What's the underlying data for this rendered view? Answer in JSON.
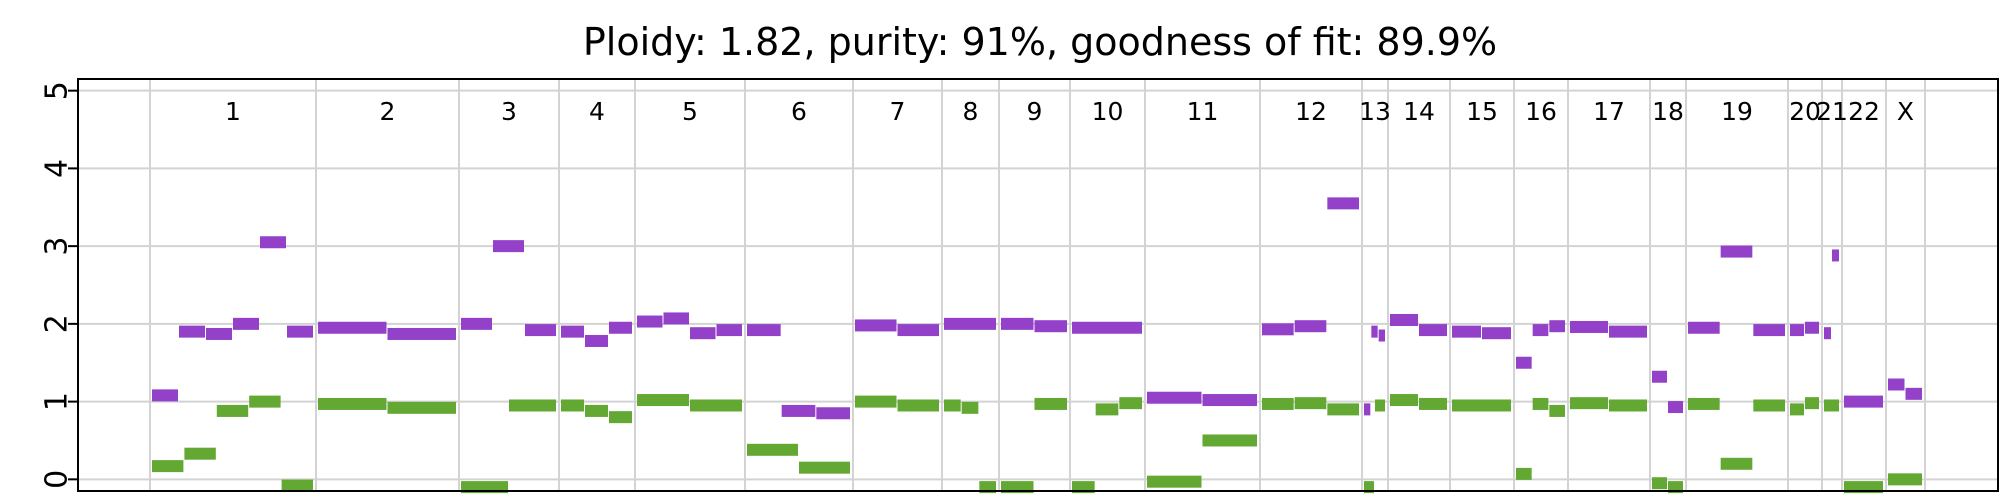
{
  "chart_data": {
    "type": "scatter",
    "title": "Ploidy: 1.82, purity: 91%, goodness of fit: 89.9%",
    "xlabel": "",
    "ylabel": "",
    "ylim": [
      -0.15,
      5.15
    ],
    "y_ticks": [
      "0",
      "1",
      "2",
      "3",
      "4",
      "5"
    ],
    "grid": true,
    "legend": "none",
    "colors": {
      "major_cn": "#9341c9",
      "minor_cn": "#62a832",
      "grid": "#d3d3d3"
    },
    "chromosomes": [
      "1",
      "2",
      "3",
      "4",
      "5",
      "6",
      "7",
      "8",
      "9",
      "10",
      "11",
      "12",
      "13",
      "14",
      "15",
      "16",
      "17",
      "18",
      "19",
      "20",
      "21",
      "22",
      "X"
    ],
    "series": [
      {
        "key": "major",
        "segments": [
          [
            1,
            1.08
          ],
          [
            1,
            1.9
          ],
          [
            1,
            1.87
          ],
          [
            1,
            2.0
          ],
          [
            1,
            3.05
          ],
          [
            1,
            1.9
          ],
          [
            2,
            1.95
          ],
          [
            2,
            1.87
          ],
          [
            3,
            2.0
          ],
          [
            3,
            3.0
          ],
          [
            3,
            1.92
          ],
          [
            4,
            1.9
          ],
          [
            4,
            1.78
          ],
          [
            4,
            1.95
          ],
          [
            5,
            2.03
          ],
          [
            5,
            2.07
          ],
          [
            5,
            1.88
          ],
          [
            5,
            1.92
          ],
          [
            6,
            1.92
          ],
          [
            6,
            0.88
          ],
          [
            6,
            0.85
          ],
          [
            7,
            1.98
          ],
          [
            7,
            1.92
          ],
          [
            8,
            2.0
          ],
          [
            9,
            2.0
          ],
          [
            9,
            1.97
          ],
          [
            10,
            1.95
          ],
          [
            11,
            1.05
          ],
          [
            11,
            1.02
          ],
          [
            12,
            1.93
          ],
          [
            12,
            1.97
          ],
          [
            12,
            3.55
          ],
          [
            13,
            0.9
          ],
          [
            13,
            1.9
          ],
          [
            13,
            1.85
          ],
          [
            14,
            2.05
          ],
          [
            14,
            1.92
          ],
          [
            15,
            1.9
          ],
          [
            15,
            1.88
          ],
          [
            16,
            1.5
          ],
          [
            16,
            1.92
          ],
          [
            16,
            1.97
          ],
          [
            17,
            1.96
          ],
          [
            17,
            1.9
          ],
          [
            18,
            1.32
          ],
          [
            18,
            0.93
          ],
          [
            19,
            1.95
          ],
          [
            19,
            2.93
          ],
          [
            19,
            1.92
          ],
          [
            20,
            1.92
          ],
          [
            20,
            1.95
          ],
          [
            21,
            1.88
          ],
          [
            21,
            2.88
          ],
          [
            22,
            1.0
          ],
          [
            "X",
            1.22
          ],
          [
            "X",
            1.1
          ]
        ]
      },
      {
        "key": "minor",
        "segments": [
          [
            1,
            0.17
          ],
          [
            1,
            0.33
          ],
          [
            1,
            0.88
          ],
          [
            1,
            1.0
          ],
          [
            1,
            -0.08
          ],
          [
            2,
            0.97
          ],
          [
            2,
            0.92
          ],
          [
            3,
            -0.1
          ],
          [
            3,
            0.95
          ],
          [
            4,
            0.95
          ],
          [
            4,
            0.88
          ],
          [
            4,
            0.8
          ],
          [
            5,
            1.02
          ],
          [
            5,
            0.95
          ],
          [
            6,
            0.38
          ],
          [
            6,
            0.15
          ],
          [
            7,
            1.0
          ],
          [
            7,
            0.95
          ],
          [
            8,
            0.95
          ],
          [
            8,
            0.92
          ],
          [
            8,
            -0.1
          ],
          [
            9,
            -0.1
          ],
          [
            9,
            0.97
          ],
          [
            10,
            -0.1
          ],
          [
            10,
            0.9
          ],
          [
            10,
            0.98
          ],
          [
            11,
            -0.03
          ],
          [
            11,
            0.5
          ],
          [
            12,
            0.97
          ],
          [
            12,
            0.98
          ],
          [
            12,
            0.9
          ],
          [
            13,
            -0.1
          ],
          [
            13,
            0.95
          ],
          [
            14,
            1.02
          ],
          [
            14,
            0.97
          ],
          [
            15,
            0.95
          ],
          [
            16,
            0.07
          ],
          [
            16,
            0.97
          ],
          [
            16,
            0.88
          ],
          [
            17,
            0.98
          ],
          [
            17,
            0.95
          ],
          [
            18,
            -0.05
          ],
          [
            18,
            -0.1
          ],
          [
            19,
            0.97
          ],
          [
            19,
            0.2
          ],
          [
            19,
            0.95
          ],
          [
            20,
            0.9
          ],
          [
            20,
            0.98
          ],
          [
            21,
            0.95
          ],
          [
            22,
            -0.1
          ],
          [
            "X",
            0.0
          ]
        ]
      }
    ]
  }
}
